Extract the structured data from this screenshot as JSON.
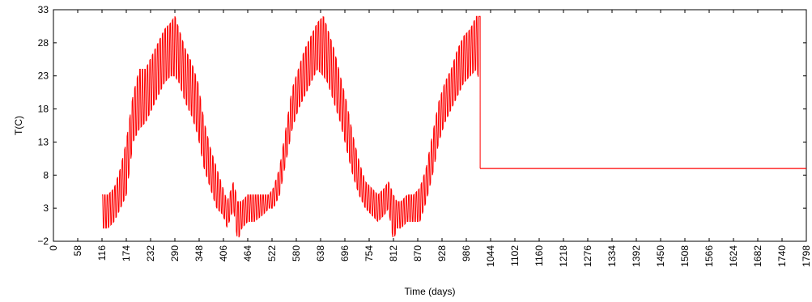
{
  "chart_data": {
    "type": "line",
    "title": "",
    "xlabel": "Time (days)",
    "ylabel": "T(C)",
    "xlim": [
      0,
      1798
    ],
    "ylim": [
      -2,
      33
    ],
    "x_ticks": [
      0,
      58,
      116,
      174,
      232,
      290,
      348,
      406,
      464,
      522,
      580,
      638,
      696,
      754,
      812,
      870,
      928,
      986,
      1044,
      1102,
      1160,
      1218,
      1276,
      1334,
      1392,
      1450,
      1508,
      1566,
      1624,
      1682,
      1740,
      1798
    ],
    "y_ticks": [
      -2,
      3,
      8,
      13,
      18,
      23,
      28,
      33
    ],
    "y_tick_labels": [
      "−2",
      "3",
      "8",
      "13",
      "18",
      "23",
      "28",
      "33"
    ],
    "grid": false,
    "color": "#ff0000",
    "series": [
      {
        "daily_swing_envelope": {
          "x": [
            116,
            130,
            145,
            160,
            174,
            190,
            205,
            220,
            235,
            250,
            265,
            280,
            290,
            300,
            315,
            330,
            345,
            360,
            375,
            390,
            405,
            415,
            430,
            440,
            450,
            464,
            480,
            500,
            515,
            525,
            540,
            555,
            570,
            585,
            600,
            615,
            630,
            645,
            655,
            670,
            685,
            700,
            715,
            730,
            745,
            760,
            775,
            790,
            800,
            812,
            820,
            830,
            845,
            860,
            875,
            890,
            905,
            920,
            935,
            950,
            965,
            980,
            995,
            1010,
            1018
          ],
          "low": [
            0,
            0,
            1,
            3,
            5,
            13,
            15,
            16,
            18,
            20,
            22,
            23,
            23,
            22,
            19,
            17,
            14,
            9,
            6,
            3,
            2,
            0,
            3,
            -2,
            0,
            1,
            1,
            2,
            3,
            3,
            5,
            10,
            15,
            18,
            20,
            22,
            24,
            23,
            22,
            19,
            16,
            12,
            8,
            5,
            3,
            2,
            1,
            2,
            3,
            -2,
            0,
            0,
            1,
            1,
            1,
            4,
            8,
            13,
            16,
            18,
            20,
            22,
            23,
            24,
            22
          ],
          "high": [
            5,
            5,
            6,
            9,
            13,
            20,
            24,
            24,
            26,
            28,
            30,
            31,
            32,
            30,
            27,
            25,
            22,
            16,
            12,
            9,
            6,
            4,
            7,
            4,
            4,
            5,
            5,
            5,
            5,
            6,
            9,
            15,
            21,
            24,
            27,
            29,
            31,
            32,
            30,
            27,
            23,
            19,
            14,
            10,
            7,
            6,
            5,
            6,
            7,
            5,
            4,
            4,
            5,
            5,
            6,
            9,
            14,
            19,
            22,
            24,
            27,
            29,
            30,
            32,
            32
          ]
        },
        "constant_segment": {
          "x": [
            1022,
            1798
          ],
          "y": [
            9,
            9
          ]
        }
      }
    ]
  }
}
